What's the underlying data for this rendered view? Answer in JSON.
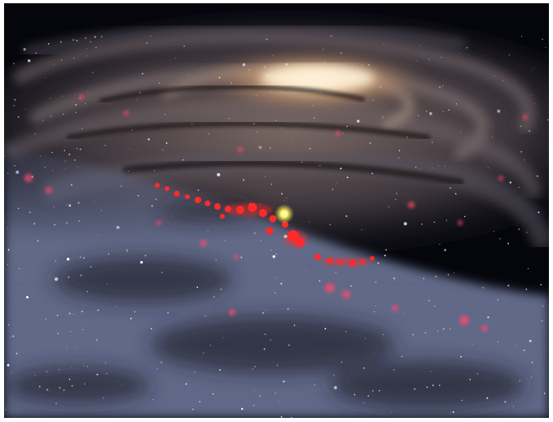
{
  "image": {
    "subject": "milky-way-galaxy-artist-view",
    "colors": {
      "space": "#05060c",
      "core": "#f4d3a4",
      "arm": "#7a6a6a",
      "foreground_dust": "#7c86a6",
      "star_forming": "#ff2a2a",
      "sun_marker": "#fff25a"
    }
  }
}
